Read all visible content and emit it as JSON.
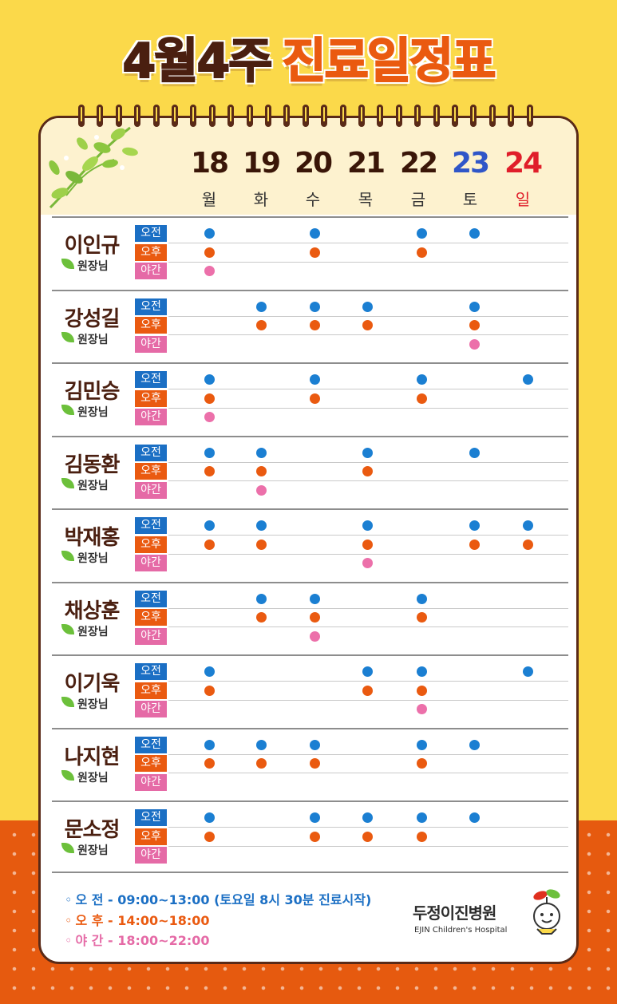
{
  "title": {
    "part1": "4월4주",
    "part2": "진료일정표"
  },
  "days": [
    {
      "num": "18",
      "name": "월"
    },
    {
      "num": "19",
      "name": "화"
    },
    {
      "num": "20",
      "name": "수"
    },
    {
      "num": "21",
      "name": "목"
    },
    {
      "num": "22",
      "name": "금"
    },
    {
      "num": "23",
      "name": "토"
    },
    {
      "num": "24",
      "name": "일"
    }
  ],
  "slot_labels": {
    "am": "오전",
    "pm": "오후",
    "night": "야간"
  },
  "doctor_title": "원장님",
  "doctors": [
    {
      "name": "이인규",
      "am": [
        1,
        0,
        1,
        0,
        1,
        1,
        0
      ],
      "pm": [
        1,
        0,
        1,
        0,
        1,
        0,
        0
      ],
      "night": [
        1,
        0,
        0,
        0,
        0,
        0,
        0
      ]
    },
    {
      "name": "강성길",
      "am": [
        0,
        1,
        1,
        1,
        0,
        1,
        0
      ],
      "pm": [
        0,
        1,
        1,
        1,
        0,
        1,
        0
      ],
      "night": [
        0,
        0,
        0,
        0,
        0,
        1,
        0
      ]
    },
    {
      "name": "김민승",
      "am": [
        1,
        0,
        1,
        0,
        1,
        0,
        1
      ],
      "pm": [
        1,
        0,
        1,
        0,
        1,
        0,
        0
      ],
      "night": [
        1,
        0,
        0,
        0,
        0,
        0,
        0
      ]
    },
    {
      "name": "김동환",
      "am": [
        1,
        1,
        0,
        1,
        0,
        1,
        0
      ],
      "pm": [
        1,
        1,
        0,
        1,
        0,
        0,
        0
      ],
      "night": [
        0,
        1,
        0,
        0,
        0,
        0,
        0
      ]
    },
    {
      "name": "박재홍",
      "am": [
        1,
        1,
        0,
        1,
        0,
        1,
        1
      ],
      "pm": [
        1,
        1,
        0,
        1,
        0,
        1,
        1
      ],
      "night": [
        0,
        0,
        0,
        1,
        0,
        0,
        0
      ]
    },
    {
      "name": "채상훈",
      "am": [
        0,
        1,
        1,
        0,
        1,
        0,
        0
      ],
      "pm": [
        0,
        1,
        1,
        0,
        1,
        0,
        0
      ],
      "night": [
        0,
        0,
        1,
        0,
        0,
        0,
        0
      ]
    },
    {
      "name": "이기욱",
      "am": [
        1,
        0,
        0,
        1,
        1,
        0,
        1
      ],
      "pm": [
        1,
        0,
        0,
        1,
        1,
        0,
        0
      ],
      "night": [
        0,
        0,
        0,
        0,
        1,
        0,
        0
      ]
    },
    {
      "name": "나지현",
      "am": [
        1,
        1,
        1,
        0,
        1,
        1,
        0
      ],
      "pm": [
        1,
        1,
        1,
        0,
        1,
        0,
        0
      ],
      "night": [
        0,
        0,
        0,
        0,
        0,
        0,
        0
      ]
    },
    {
      "name": "문소정",
      "am": [
        1,
        0,
        1,
        1,
        1,
        1,
        0
      ],
      "pm": [
        1,
        0,
        1,
        1,
        1,
        0,
        0
      ],
      "night": [
        0,
        0,
        0,
        0,
        0,
        0,
        0
      ]
    }
  ],
  "legend": {
    "bullet": "◦",
    "am": "오 전 - 09:00~13:00 (토요일 8시 30분 진료시작)",
    "pm": "오 후 - 14:00~18:00",
    "night": "야 간 - 18:00~22:00"
  },
  "hospital": {
    "name": "두정이진병원",
    "name_en": "EJIN Children's Hospital"
  },
  "colors": {
    "background": "#fbd94a",
    "bottom_band": "#e65a0f",
    "brown": "#4a1f10",
    "orange": "#ea5a10",
    "am_blue": "#1b7fd2",
    "night_pink": "#ec70aa",
    "saturday_blue": "#2f56c8",
    "sunday_red": "#e01e2a"
  }
}
